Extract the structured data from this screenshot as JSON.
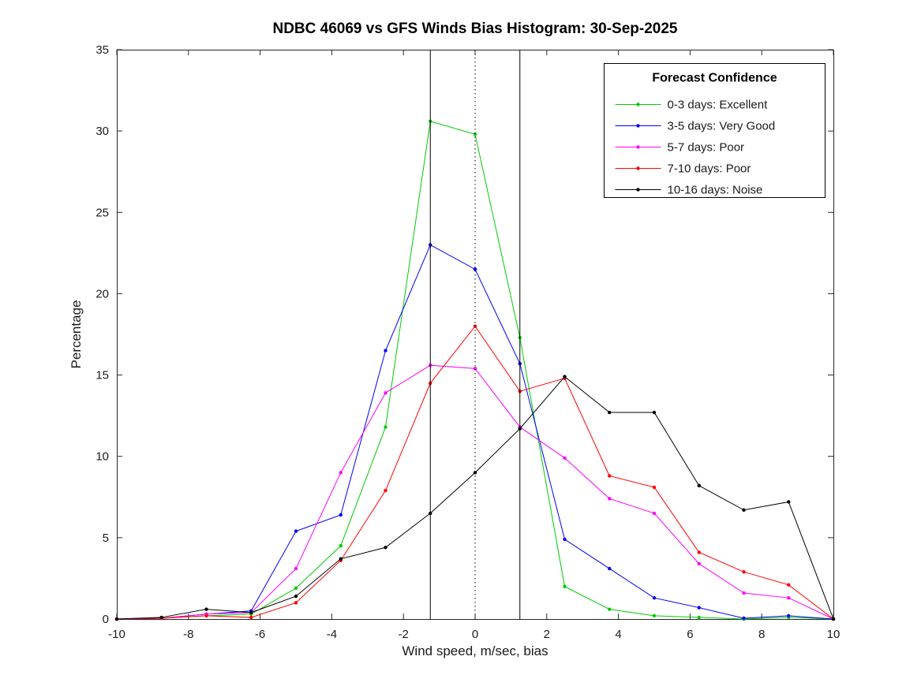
{
  "chart_data": {
    "type": "line",
    "title": "NDBC 46069 vs GFS Winds Bias Histogram: 30-Sep-2025",
    "xlabel": "Wind speed, m/sec, bias",
    "ylabel": "Percentage",
    "xlim": [
      -10,
      10
    ],
    "ylim": [
      0,
      35
    ],
    "xticks": [
      -10,
      -8,
      -6,
      -4,
      -2,
      0,
      2,
      4,
      6,
      8,
      10
    ],
    "yticks": [
      0,
      5,
      10,
      15,
      20,
      25,
      30,
      35
    ],
    "grid": false,
    "axis_color": "#262626",
    "x": [
      -10,
      -8.75,
      -7.5,
      -6.25,
      -5,
      -3.75,
      -2.5,
      -1.25,
      0,
      1.25,
      2.5,
      3.75,
      5,
      6.25,
      7.5,
      8.75,
      10
    ],
    "series": [
      {
        "name": "0-3 days: Excellent",
        "color": "#00cc00",
        "values": [
          0,
          0.05,
          0.2,
          0.3,
          1.9,
          4.5,
          11.8,
          30.6,
          29.8,
          17.3,
          2.0,
          0.6,
          0.2,
          0.1,
          0.0,
          0.1,
          0
        ]
      },
      {
        "name": "3-5 days: Very Good",
        "color": "#0000ff",
        "values": [
          0,
          0.05,
          0.3,
          0.5,
          5.4,
          6.4,
          16.5,
          23.0,
          21.5,
          15.7,
          4.9,
          3.1,
          1.3,
          0.7,
          0.05,
          0.2,
          0
        ]
      },
      {
        "name": "5-7 days: Poor",
        "color": "#ff00ff",
        "values": [
          0,
          0.05,
          0.3,
          0.4,
          3.1,
          9.0,
          13.9,
          15.6,
          15.4,
          11.8,
          9.9,
          7.4,
          6.5,
          3.4,
          1.6,
          1.3,
          0
        ]
      },
      {
        "name": "7-10 days: Poor",
        "color": "#ff0000",
        "values": [
          0,
          0.05,
          0.2,
          0.1,
          1.0,
          3.6,
          7.9,
          14.5,
          18.0,
          14.0,
          14.8,
          8.8,
          8.1,
          4.1,
          2.9,
          2.1,
          0
        ]
      },
      {
        "name": "10-16 days: Noise",
        "color": "#000000",
        "values": [
          0,
          0.1,
          0.6,
          0.4,
          1.4,
          3.7,
          4.4,
          6.5,
          9.0,
          11.7,
          14.9,
          12.7,
          12.7,
          8.2,
          6.7,
          7.2,
          0
        ]
      }
    ],
    "reference_lines": {
      "solid_x": [
        -1.25,
        1.25
      ],
      "dotted_x": [
        0
      ],
      "color": "#000000"
    },
    "legend": {
      "title": "Forecast Confidence",
      "position": "top-right",
      "border_color": "#000000"
    }
  }
}
